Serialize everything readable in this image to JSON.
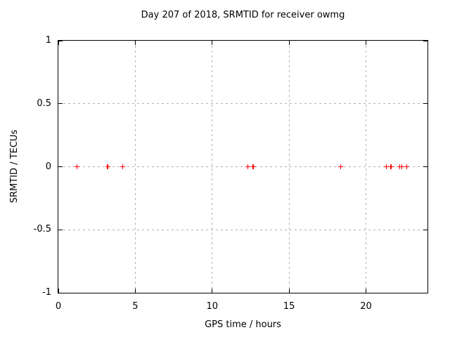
{
  "chart_data": {
    "type": "scatter",
    "title": "Day 207 of 2018, SRMTID for receiver owmg",
    "xlabel": "GPS time / hours",
    "ylabel": "SRMTID / TECUs",
    "xlim": [
      0,
      24
    ],
    "ylim": [
      -1,
      1
    ],
    "grid": true,
    "legend": "none",
    "marker": "plus",
    "xticks": {
      "values": [
        0,
        5,
        10,
        15,
        20
      ],
      "labels": [
        "0",
        "5",
        "10",
        "15",
        "20"
      ]
    },
    "yticks": {
      "values": [
        1,
        0.5,
        0,
        -0.5,
        -1
      ],
      "labels": [
        "1",
        "0.5",
        "0",
        "-0.5",
        "-1"
      ]
    },
    "colors": {
      "marker": "#ff0000",
      "grid": "#b0b0b0",
      "frame": "#000000",
      "background": "#ffffff",
      "text": "#000000"
    },
    "series": [
      {
        "x": [
          1.22,
          3.2,
          4.19,
          12.31,
          12.67,
          18.36,
          21.33,
          21.63,
          22.19,
          22.33,
          22.65
        ],
        "y": [
          0,
          0,
          0,
          0,
          0,
          0,
          0,
          0,
          0,
          0,
          0
        ]
      }
    ]
  }
}
